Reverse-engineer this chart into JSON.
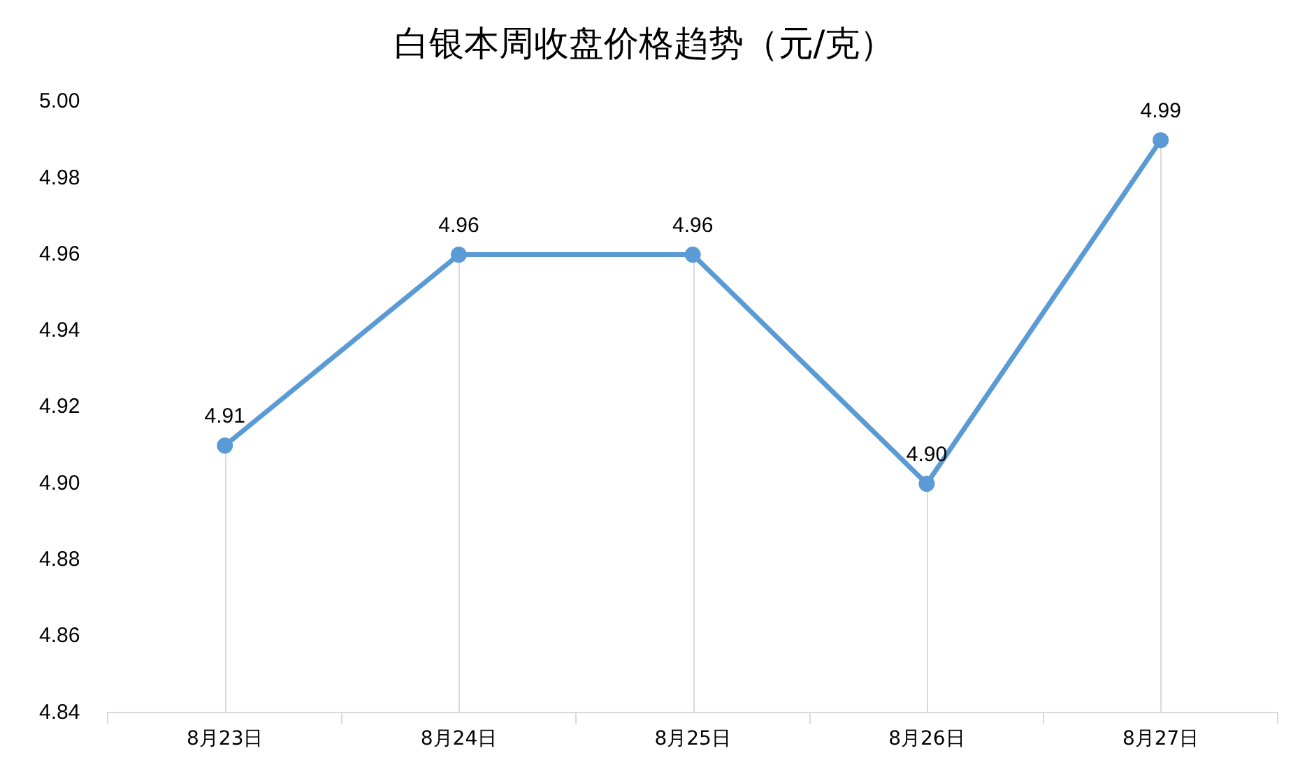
{
  "chart_data": {
    "type": "line",
    "title": "白银本周收盘价格趋势（元/克）",
    "categories": [
      "8月23日",
      "8月24日",
      "8月25日",
      "8月26日",
      "8月27日"
    ],
    "series": [
      {
        "color": "#5b9bd5",
        "values": [
          4.91,
          4.96,
          4.96,
          4.9,
          4.99
        ],
        "value_labels": [
          "4.91",
          "4.96",
          "4.96",
          "4.90",
          "4.99"
        ]
      }
    ],
    "ylim": [
      4.84,
      5.0
    ],
    "yticks": [
      {
        "value": 4.84,
        "label": "4.84"
      },
      {
        "value": 4.86,
        "label": "4.86"
      },
      {
        "value": 4.88,
        "label": "4.88"
      },
      {
        "value": 4.9,
        "label": "4.90"
      },
      {
        "value": 4.92,
        "label": "4.92"
      },
      {
        "value": 4.94,
        "label": "4.94"
      },
      {
        "value": 4.96,
        "label": "4.96"
      },
      {
        "value": 4.98,
        "label": "4.98"
      },
      {
        "value": 5,
        "label": "5.00"
      }
    ],
    "grid": "x",
    "marker": "circle",
    "line_style": "solid"
  }
}
